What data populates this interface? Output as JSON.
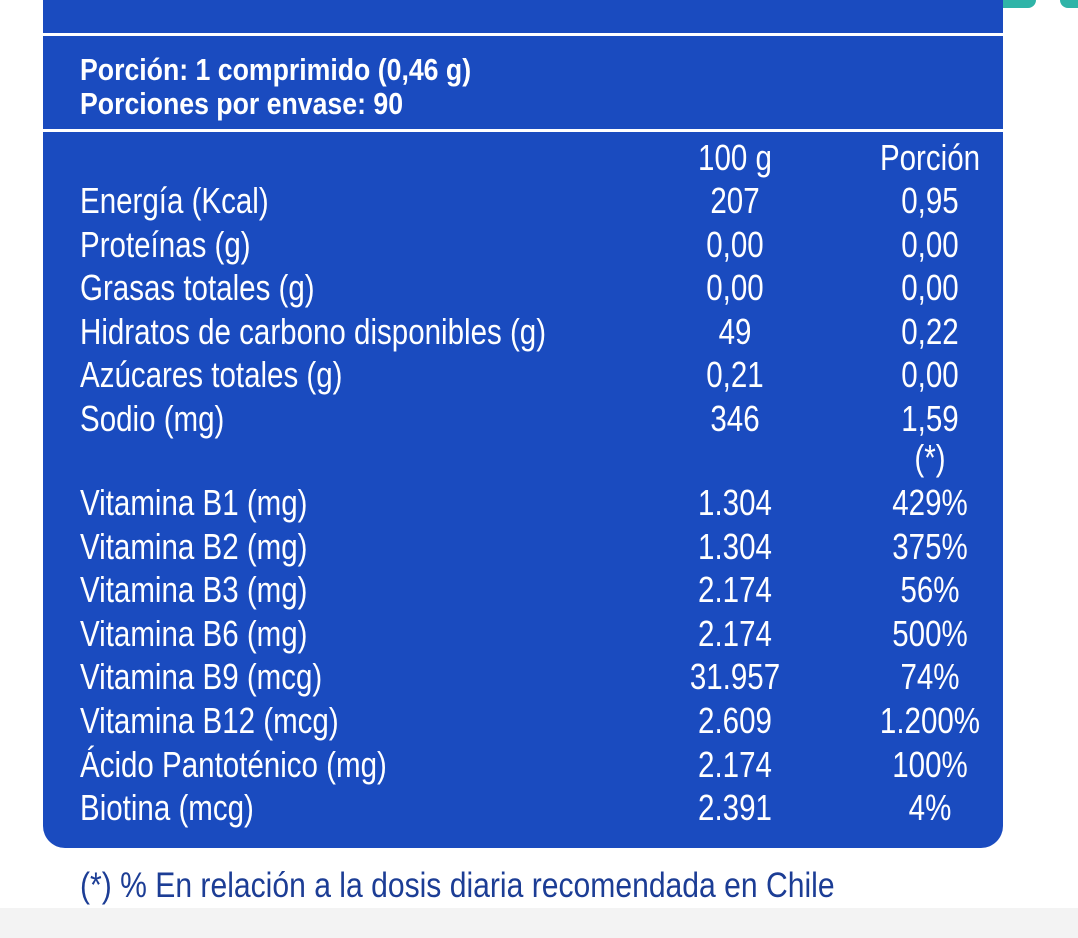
{
  "serving": {
    "size": "Porción: 1 comprimido (0,46 g)",
    "per_container": "Porciones por envase: 90"
  },
  "table": {
    "header": [
      "100 g",
      "Porción"
    ],
    "nutrients": [
      [
        "Energía (Kcal)",
        "207",
        "0,95"
      ],
      [
        "Proteínas (g)",
        "0,00",
        "0,00"
      ],
      [
        "Grasas totales (g)",
        "0,00",
        "0,00"
      ],
      [
        "Hidratos de carbono disponibles (g)",
        "49",
        "0,22"
      ],
      [
        "Azúcares totales (g)",
        "0,21",
        "0,00"
      ],
      [
        "Sodio (mg)",
        "346",
        "1,59"
      ]
    ],
    "marker": "(*)",
    "vitamins": [
      [
        "Vitamina B1 (mg)",
        "1.304",
        "429%"
      ],
      [
        "Vitamina B2 (mg)",
        "1.304",
        "375%"
      ],
      [
        "Vitamina B3 (mg)",
        "2.174",
        "56%"
      ],
      [
        "Vitamina B6 (mg)",
        "2.174",
        "500%"
      ],
      [
        "Vitamina B9 (mcg)",
        "31.957",
        "74%"
      ],
      [
        "Vitamina B12 (mcg)",
        "2.609",
        "1.200%"
      ],
      [
        "Ácido Pantoténico (mg)",
        "2.174",
        "100%"
      ],
      [
        "Biotina (mcg)",
        "2.391",
        "4%"
      ]
    ]
  },
  "footnote": "(*) % En relación a la dosis diaria recomendada en Chile"
}
